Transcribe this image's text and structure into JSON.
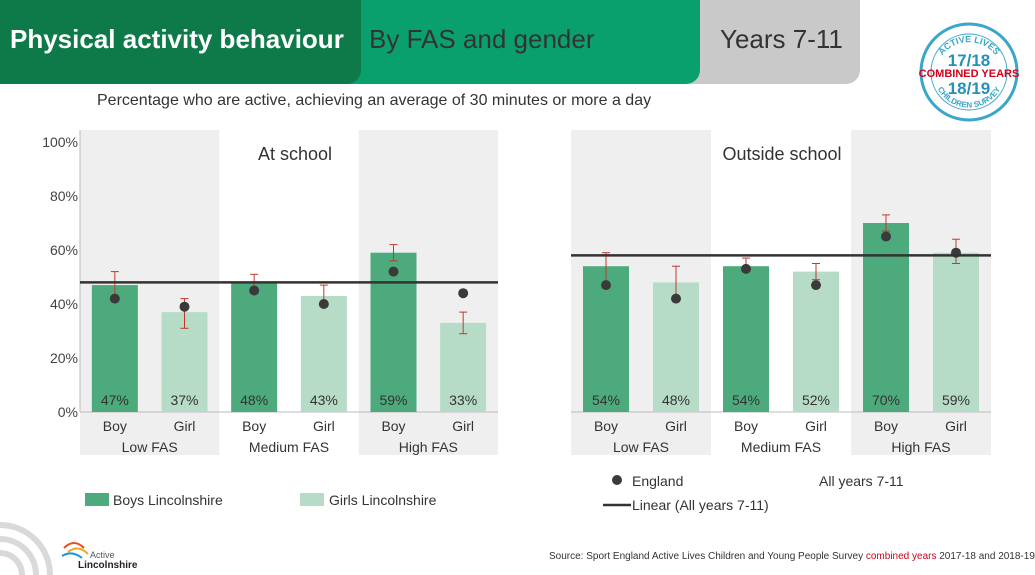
{
  "header": {
    "title": "Physical activity behaviour",
    "subtitle": "By FAS and gender",
    "years": "Years 7-11"
  },
  "badge": {
    "top_text": "ACTIVE LIVES",
    "year1": "17/18",
    "combined": "COMBINED YEARS",
    "year2": "18/19",
    "bottom_text": "CHILDREN SURVEY"
  },
  "page_subtitle": "Percentage who are active, achieving an average of 30 minutes or more a day",
  "legend": {
    "boys": "Boys Lincolnshire",
    "girls": "Girls Lincolnshire",
    "england": "England",
    "all_years": "All years 7-11",
    "linear": "Linear (All years 7-11)"
  },
  "footer": {
    "source_prefix": "Source: Sport England Active Lives Children and Young People Survey ",
    "source_highlight": "combined years",
    "source_suffix": " 2017-18 and 2018-19",
    "logo_line1": "Active",
    "logo_line2": "Lincolnshire"
  },
  "colors": {
    "boys": "#4caa7c",
    "girls": "#b6dcc8",
    "band": "#efefef",
    "header_dark": "#0e7a4a",
    "header_mid": "#0aa06e",
    "header_grey": "#c9c9c9",
    "error_bar": "#c0392b",
    "accent_red": "#d0021b"
  },
  "chart_data": [
    {
      "type": "bar",
      "title": "At school",
      "ylim": [
        0,
        100
      ],
      "yticks": [
        "0%",
        "20%",
        "40%",
        "60%",
        "80%",
        "100%"
      ],
      "groups": [
        "Low FAS",
        "Medium FAS",
        "High FAS"
      ],
      "categories": [
        "Boy",
        "Girl",
        "Boy",
        "Girl",
        "Boy",
        "Girl"
      ],
      "series": [
        {
          "name": "Boys Lincolnshire / Girls Lincolnshire",
          "values": [
            47,
            37,
            48,
            43,
            59,
            33
          ],
          "labels": [
            "47%",
            "37%",
            "48%",
            "43%",
            "59%",
            "33%"
          ]
        },
        {
          "name": "England",
          "values": [
            42,
            39,
            45,
            40,
            52,
            44
          ]
        }
      ],
      "error_bars": [
        [
          42,
          52
        ],
        [
          31,
          42
        ],
        [
          44,
          51
        ],
        [
          39,
          47
        ],
        [
          56,
          62
        ],
        [
          29,
          37
        ]
      ],
      "reference_line": {
        "name": "Linear (All years 7-11)",
        "value": 48
      }
    },
    {
      "type": "bar",
      "title": "Outside school",
      "ylim": [
        0,
        100
      ],
      "groups": [
        "Low FAS",
        "Medium FAS",
        "High FAS"
      ],
      "categories": [
        "Boy",
        "Girl",
        "Boy",
        "Girl",
        "Boy",
        "Girl"
      ],
      "series": [
        {
          "name": "Boys Lincolnshire / Girls Lincolnshire",
          "values": [
            54,
            48,
            54,
            52,
            70,
            59
          ],
          "labels": [
            "54%",
            "48%",
            "54%",
            "52%",
            "70%",
            "59%"
          ]
        },
        {
          "name": "England",
          "values": [
            47,
            42,
            53,
            47,
            65,
            59
          ]
        }
      ],
      "error_bars": [
        [
          47,
          59
        ],
        [
          42,
          54
        ],
        [
          52,
          57
        ],
        [
          49,
          55
        ],
        [
          67,
          73
        ],
        [
          55,
          64
        ]
      ],
      "reference_line": {
        "name": "Linear (All years 7-11)",
        "value": 58
      }
    }
  ]
}
